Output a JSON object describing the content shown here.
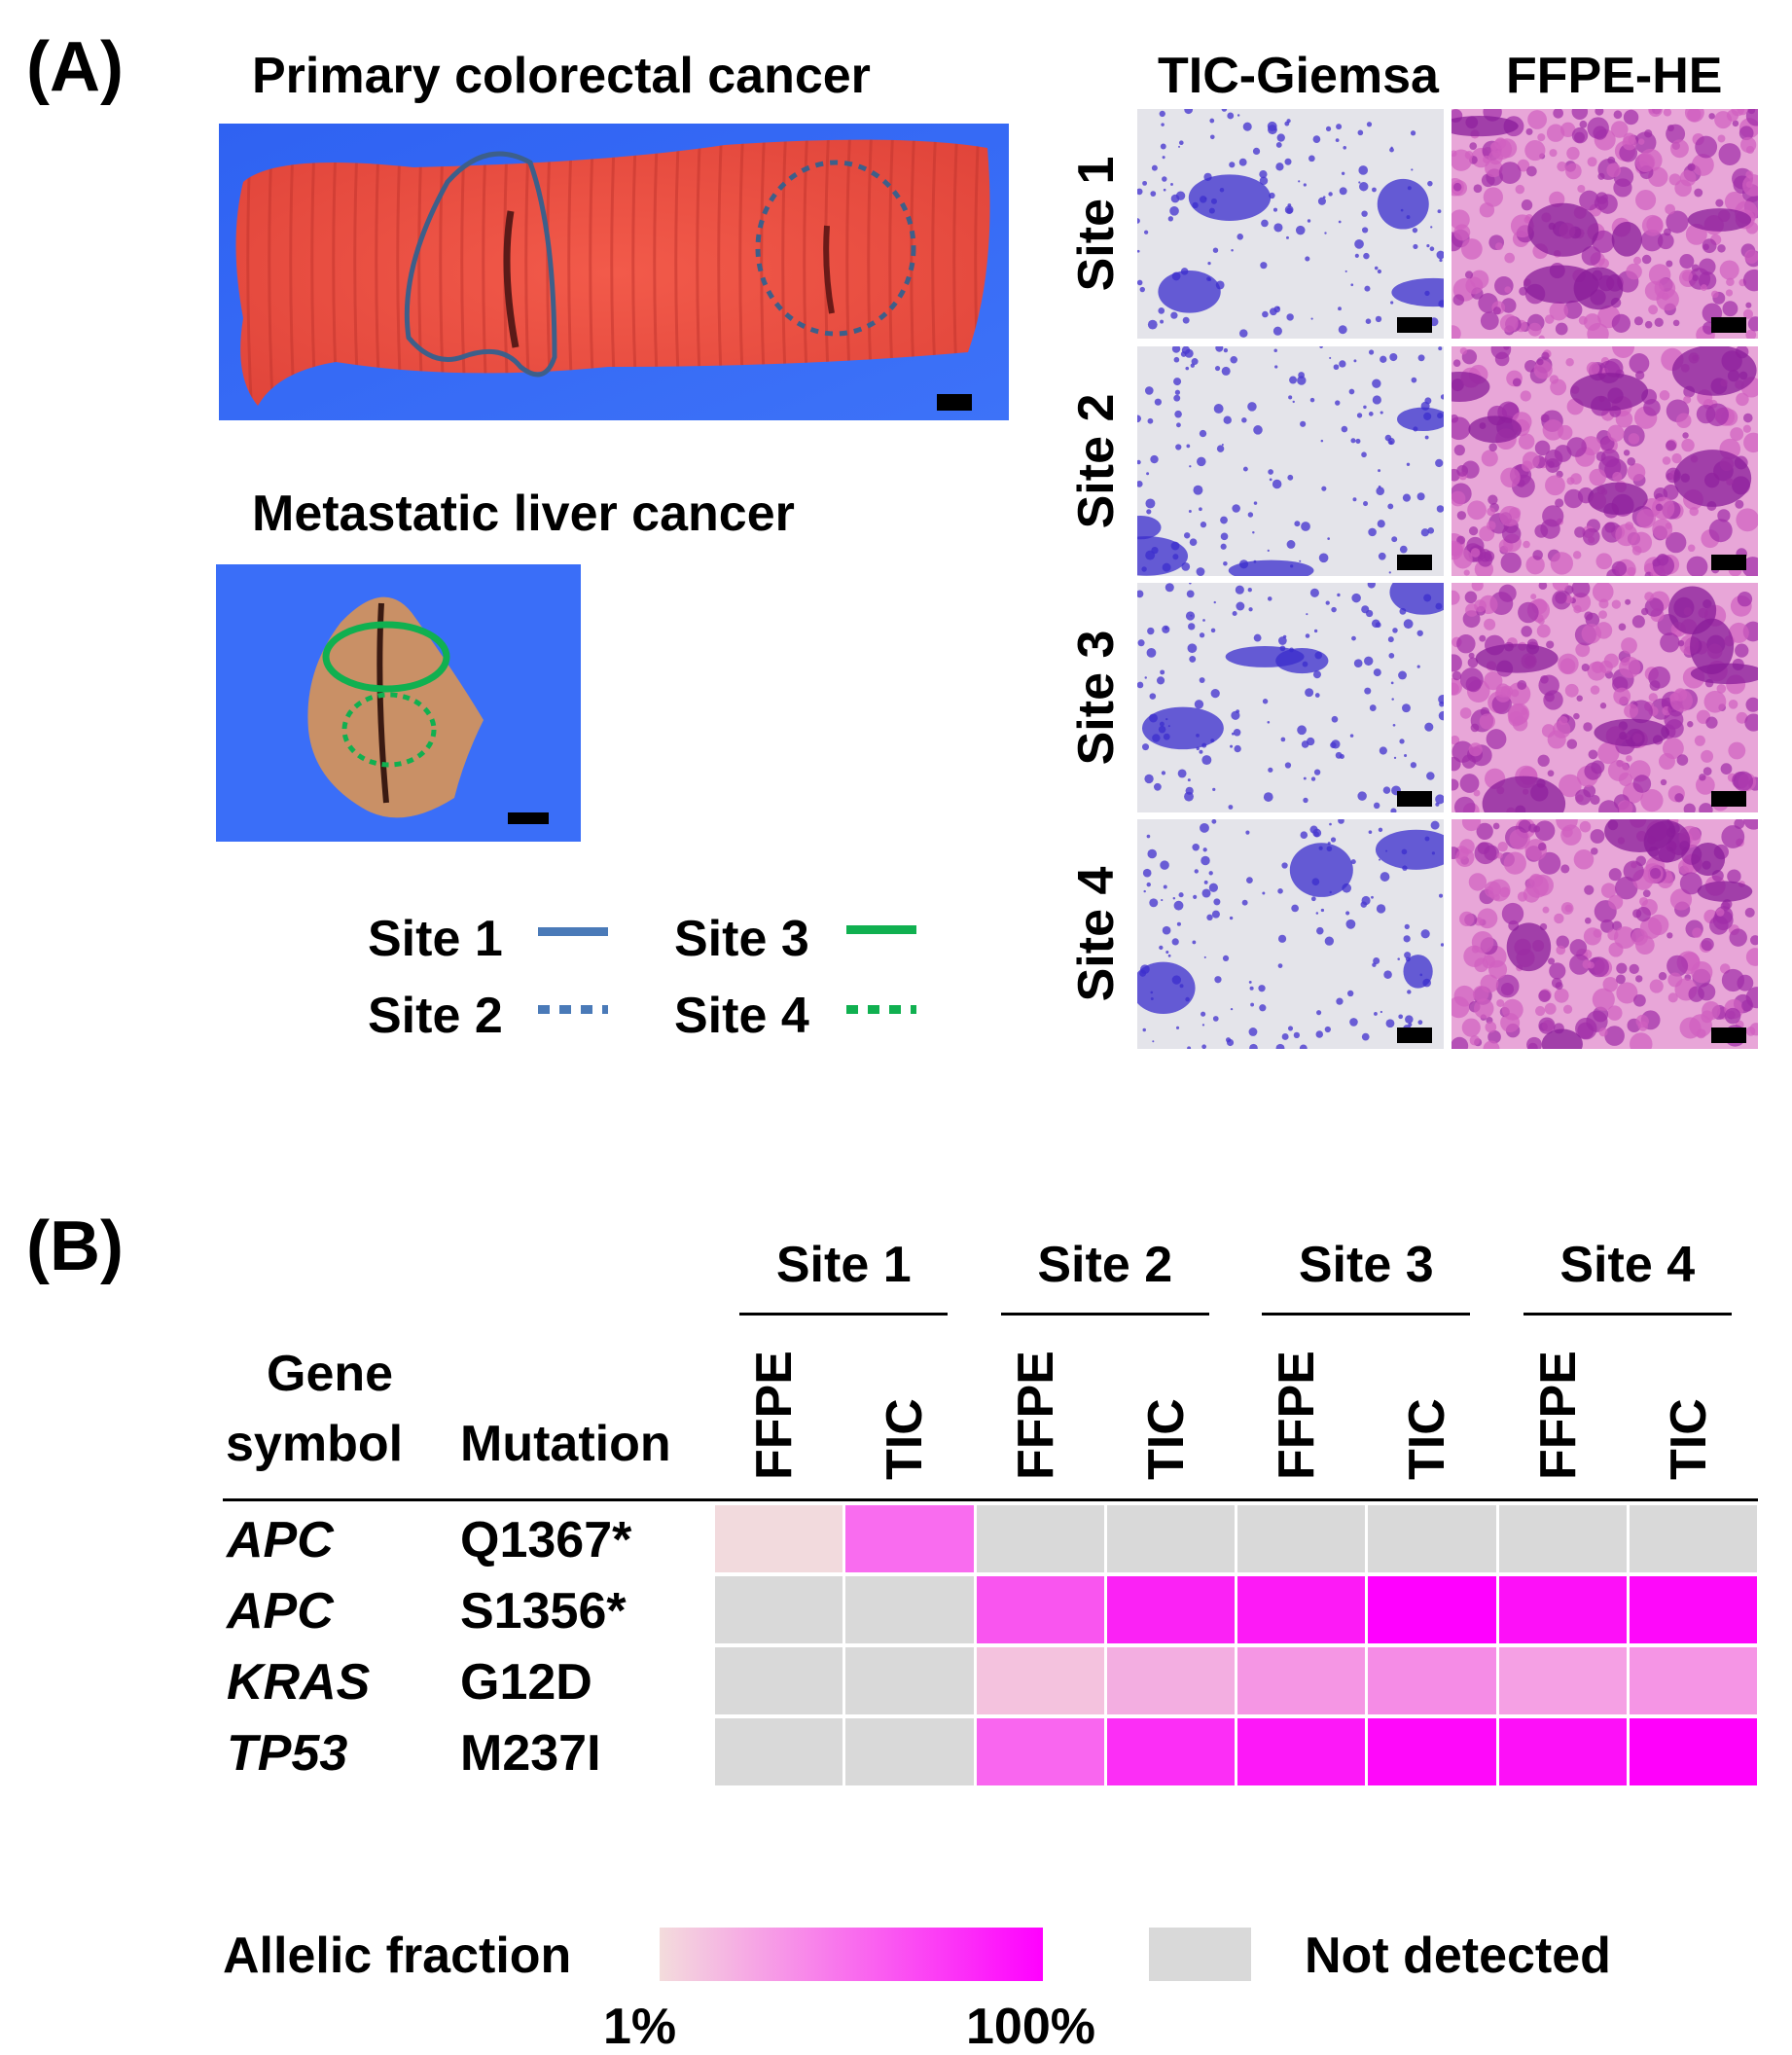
{
  "panelA": {
    "label": "(A)",
    "primary_title": "Primary colorectal cancer",
    "liver_title": "Metastatic liver cancer",
    "micro_headers": [
      "TIC-Giemsa",
      "FFPE-HE"
    ],
    "site_rows": [
      "Site 1",
      "Site 2",
      "Site 3",
      "Site 4"
    ],
    "legend": [
      {
        "label": "Site 1",
        "color": "#4a7ab8",
        "style": "solid"
      },
      {
        "label": "Site 2",
        "color": "#4a7ab8",
        "style": "dotted"
      },
      {
        "label": "Site 3",
        "color": "#10b050",
        "style": "solid"
      },
      {
        "label": "Site 4",
        "color": "#10b050",
        "style": "dotted"
      }
    ]
  },
  "panelB": {
    "label": "(B)",
    "sites": [
      "Site 1",
      "Site 2",
      "Site 3",
      "Site 4"
    ],
    "sample_types": [
      "FFPE",
      "TIC"
    ],
    "header_gene": [
      "Gene",
      "symbol"
    ],
    "header_mutation": "Mutation",
    "rows": [
      {
        "gene": "APC",
        "mutation": "Q1367*",
        "cells": [
          "#f2dadd",
          "#f96cef",
          null,
          null,
          null,
          null,
          null,
          null
        ]
      },
      {
        "gene": "APC",
        "mutation": "S1356*",
        "cells": [
          null,
          null,
          "#f955ef",
          "#fb22f5",
          "#fd1af6",
          "#ff00ff",
          "#fd10f8",
          "#fe08fa"
        ]
      },
      {
        "gene": "KRAS",
        "mutation": "G12D",
        "cells": [
          null,
          null,
          "#f4c2de",
          "#f3aee1",
          "#f596e4",
          "#f58ce6",
          "#f5a0e4",
          "#f595e5"
        ]
      },
      {
        "gene": "TP53",
        "mutation": "M237I",
        "cells": [
          null,
          null,
          "#f966ef",
          "#fc2ef6",
          "#fd18f8",
          "#ff08fa",
          "#fd10f8",
          "#ff00fb"
        ]
      }
    ],
    "not_detected_color": "#d9d9d9",
    "legend": {
      "title": "Allelic fraction",
      "min_label": "1%",
      "max_label": "100%",
      "min_color": "#f3dcdc",
      "max_color": "#ff00ff",
      "not_detected_label": "Not detected"
    }
  }
}
